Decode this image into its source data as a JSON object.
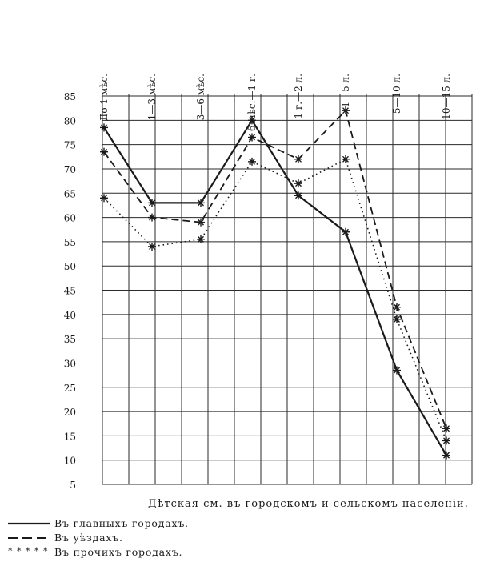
{
  "chart_data": {
    "type": "line",
    "categories": [
      "До 1 мѣс.",
      "1—3 мѣс.",
      "3—6 мѣс.",
      "6 мѣс.—1 г.",
      "1 г.—2 л.",
      "1—5 л.",
      "5—10 л.",
      "10—15 л."
    ],
    "series": [
      {
        "name": "Въ главныхъ городахъ.",
        "style": "solid",
        "values": [
          78.5,
          63,
          63,
          80,
          64.5,
          57,
          28.5,
          11
        ]
      },
      {
        "name": "Въ уѣздахъ.",
        "style": "dashed",
        "values": [
          73.5,
          60,
          59,
          76.5,
          72,
          82,
          41.5,
          16.5
        ]
      },
      {
        "name": "Въ прочихъ городахъ.",
        "style": "dotted",
        "values": [
          64,
          54,
          55.5,
          71.5,
          67,
          72,
          39,
          14
        ]
      }
    ],
    "y_ticks": [
      5,
      10,
      15,
      20,
      25,
      30,
      35,
      40,
      45,
      50,
      55,
      60,
      65,
      70,
      75,
      80,
      85
    ],
    "ylim": [
      5,
      85
    ],
    "grid": true,
    "legend_position": "bottom-left",
    "title": "Дѣтская см. въ городскомъ и сельскомъ населеніи."
  },
  "legend_items": [
    {
      "marker": "line",
      "label": "Въ главныхъ городахъ."
    },
    {
      "marker": "dash",
      "label": "Въ уѣздахъ."
    },
    {
      "marker": "star",
      "text": "* * * * *",
      "label": "Въ прочихъ городахъ."
    }
  ],
  "colors": {
    "ink": "#1a1a1a",
    "grid": "#2a2a2a",
    "paper": "#ffffff"
  }
}
